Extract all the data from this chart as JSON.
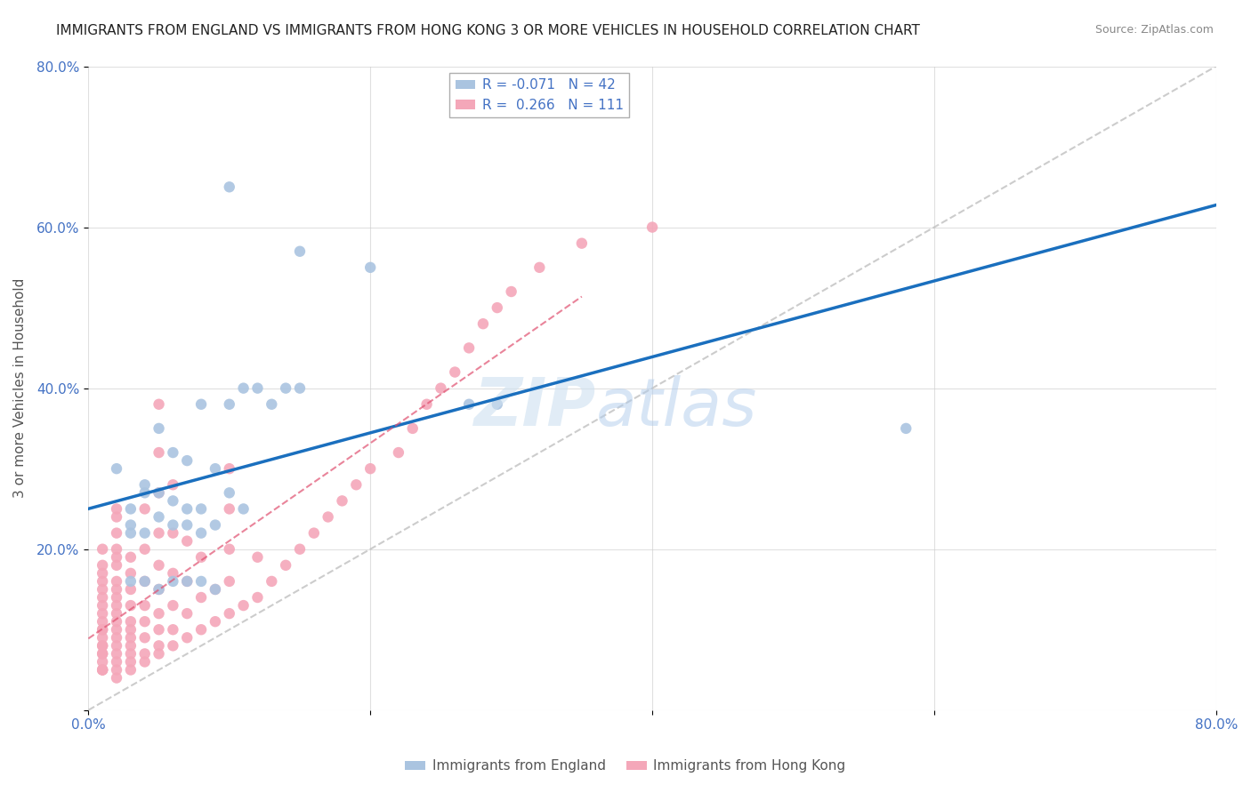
{
  "title": "IMMIGRANTS FROM ENGLAND VS IMMIGRANTS FROM HONG KONG 3 OR MORE VEHICLES IN HOUSEHOLD CORRELATION CHART",
  "source": "Source: ZipAtlas.com",
  "xlabel": "",
  "ylabel": "3 or more Vehicles in Household",
  "xlim": [
    0.0,
    0.8
  ],
  "ylim": [
    0.0,
    0.8
  ],
  "england_R": -0.071,
  "england_N": 42,
  "hongkong_R": 0.266,
  "hongkong_N": 111,
  "england_color": "#aac4e0",
  "hongkong_color": "#f4a7b9",
  "england_line_color": "#1a6fbe",
  "hongkong_line_color": "#e05070",
  "diagonal_color": "#c0c0c0",
  "legend_label_england": "Immigrants from England",
  "legend_label_hongkong": "Immigrants from Hong Kong",
  "england_x": [
    0.02,
    0.03,
    0.04,
    0.05,
    0.06,
    0.07,
    0.08,
    0.09,
    0.1,
    0.11,
    0.12,
    0.13,
    0.14,
    0.15,
    0.03,
    0.04,
    0.05,
    0.06,
    0.07,
    0.08,
    0.03,
    0.04,
    0.05,
    0.06,
    0.07,
    0.08,
    0.09,
    0.1,
    0.11,
    0.03,
    0.04,
    0.05,
    0.06,
    0.07,
    0.08,
    0.09,
    0.27,
    0.29,
    0.58,
    0.1,
    0.15,
    0.2
  ],
  "england_y": [
    0.3,
    0.25,
    0.27,
    0.35,
    0.32,
    0.31,
    0.38,
    0.3,
    0.38,
    0.4,
    0.4,
    0.38,
    0.4,
    0.4,
    0.23,
    0.28,
    0.27,
    0.26,
    0.25,
    0.25,
    0.22,
    0.22,
    0.24,
    0.23,
    0.23,
    0.22,
    0.23,
    0.27,
    0.25,
    0.16,
    0.16,
    0.15,
    0.16,
    0.16,
    0.16,
    0.15,
    0.38,
    0.38,
    0.35,
    0.65,
    0.57,
    0.55
  ],
  "hongkong_x": [
    0.01,
    0.01,
    0.01,
    0.01,
    0.01,
    0.01,
    0.01,
    0.01,
    0.01,
    0.01,
    0.01,
    0.01,
    0.01,
    0.01,
    0.01,
    0.01,
    0.01,
    0.01,
    0.01,
    0.01,
    0.02,
    0.02,
    0.02,
    0.02,
    0.02,
    0.02,
    0.02,
    0.02,
    0.02,
    0.02,
    0.02,
    0.02,
    0.02,
    0.02,
    0.02,
    0.02,
    0.02,
    0.02,
    0.02,
    0.03,
    0.03,
    0.03,
    0.03,
    0.03,
    0.03,
    0.03,
    0.03,
    0.03,
    0.03,
    0.03,
    0.04,
    0.04,
    0.04,
    0.04,
    0.04,
    0.04,
    0.04,
    0.04,
    0.05,
    0.05,
    0.05,
    0.05,
    0.05,
    0.05,
    0.05,
    0.05,
    0.05,
    0.05,
    0.06,
    0.06,
    0.06,
    0.06,
    0.06,
    0.06,
    0.07,
    0.07,
    0.07,
    0.07,
    0.08,
    0.08,
    0.08,
    0.09,
    0.09,
    0.1,
    0.1,
    0.1,
    0.1,
    0.1,
    0.11,
    0.12,
    0.12,
    0.13,
    0.14,
    0.15,
    0.16,
    0.17,
    0.18,
    0.19,
    0.2,
    0.22,
    0.23,
    0.24,
    0.25,
    0.26,
    0.27,
    0.28,
    0.29,
    0.3,
    0.32,
    0.35,
    0.4
  ],
  "hongkong_y": [
    0.05,
    0.05,
    0.05,
    0.06,
    0.07,
    0.07,
    0.08,
    0.08,
    0.09,
    0.1,
    0.1,
    0.11,
    0.12,
    0.13,
    0.14,
    0.15,
    0.16,
    0.17,
    0.18,
    0.2,
    0.04,
    0.05,
    0.06,
    0.07,
    0.08,
    0.09,
    0.1,
    0.11,
    0.12,
    0.13,
    0.14,
    0.15,
    0.16,
    0.18,
    0.19,
    0.2,
    0.22,
    0.24,
    0.25,
    0.05,
    0.06,
    0.07,
    0.08,
    0.09,
    0.1,
    0.11,
    0.13,
    0.15,
    0.17,
    0.19,
    0.06,
    0.07,
    0.09,
    0.11,
    0.13,
    0.16,
    0.2,
    0.25,
    0.07,
    0.08,
    0.1,
    0.12,
    0.15,
    0.18,
    0.22,
    0.27,
    0.32,
    0.38,
    0.08,
    0.1,
    0.13,
    0.17,
    0.22,
    0.28,
    0.09,
    0.12,
    0.16,
    0.21,
    0.1,
    0.14,
    0.19,
    0.11,
    0.15,
    0.12,
    0.16,
    0.2,
    0.25,
    0.3,
    0.13,
    0.14,
    0.19,
    0.16,
    0.18,
    0.2,
    0.22,
    0.24,
    0.26,
    0.28,
    0.3,
    0.32,
    0.35,
    0.38,
    0.4,
    0.42,
    0.45,
    0.48,
    0.5,
    0.52,
    0.55,
    0.58,
    0.6
  ]
}
